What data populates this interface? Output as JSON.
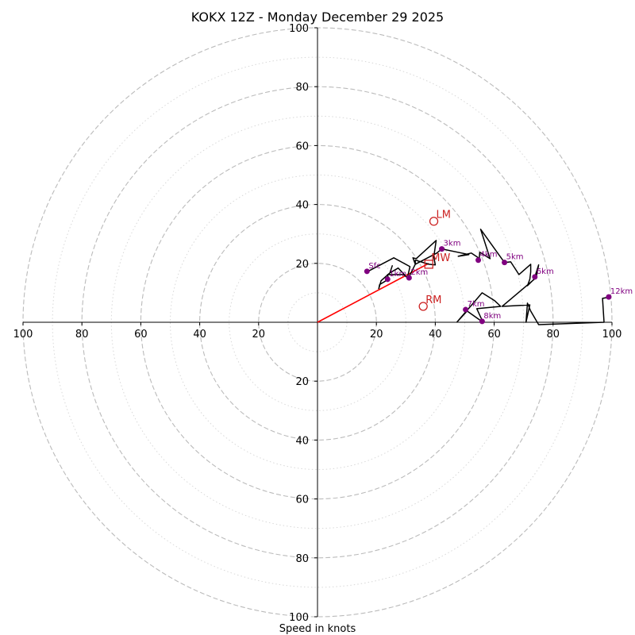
{
  "chart_data": {
    "type": "hodograph",
    "title": "KOKX 12Z - Monday December 29 2025",
    "xlabel": "Speed in knots",
    "range": [
      -100,
      100
    ],
    "rings_major": [
      20,
      40,
      60,
      80,
      100
    ],
    "rings_minor": [
      10,
      30,
      50,
      70,
      90
    ],
    "x_ticks": [
      {
        "value": -100,
        "label": "100"
      },
      {
        "value": -80,
        "label": "80"
      },
      {
        "value": -60,
        "label": "60"
      },
      {
        "value": -40,
        "label": "40"
      },
      {
        "value": -20,
        "label": "20"
      },
      {
        "value": 20,
        "label": "20"
      },
      {
        "value": 40,
        "label": "40"
      },
      {
        "value": 60,
        "label": "60"
      },
      {
        "value": 80,
        "label": "80"
      },
      {
        "value": 100,
        "label": "100"
      }
    ],
    "y_ticks": [
      {
        "value": 100,
        "label": "100"
      },
      {
        "value": 80,
        "label": "80"
      },
      {
        "value": 60,
        "label": "60"
      },
      {
        "value": 40,
        "label": "40"
      },
      {
        "value": 20,
        "label": "20"
      },
      {
        "value": -20,
        "label": "20"
      },
      {
        "value": -40,
        "label": "40"
      },
      {
        "value": -60,
        "label": "60"
      },
      {
        "value": -80,
        "label": "80"
      },
      {
        "value": -100,
        "label": "100"
      }
    ],
    "hodograph_trace": [
      [
        16.8,
        17.1
      ],
      [
        25.9,
        21.9
      ],
      [
        31.4,
        18.9
      ],
      [
        30.5,
        15.1
      ],
      [
        27.4,
        18.4
      ],
      [
        24.6,
        16.8
      ],
      [
        25.4,
        19.2
      ],
      [
        24.6,
        16.8
      ],
      [
        21.6,
        14.1
      ],
      [
        20.8,
        11.4
      ],
      [
        21.1,
        12.8
      ],
      [
        24.1,
        14.6
      ],
      [
        23.8,
        16.2
      ],
      [
        25.7,
        16.2
      ],
      [
        29.2,
        16.2
      ],
      [
        30.8,
        14.9
      ],
      [
        33.2,
        19.7
      ],
      [
        33.2,
        21.1
      ],
      [
        37.8,
        19.7
      ],
      [
        40.0,
        19.5
      ],
      [
        39.5,
        22.2
      ],
      [
        40.3,
        27.8
      ],
      [
        33.5,
        21.6
      ],
      [
        32.4,
        21.9
      ],
      [
        33.2,
        19.7
      ],
      [
        40.5,
        23.5
      ],
      [
        42.2,
        24.9
      ],
      [
        51.4,
        23.0
      ],
      [
        47.8,
        22.4
      ],
      [
        52.2,
        23.5
      ],
      [
        55.1,
        21.6
      ],
      [
        54.9,
        21.1
      ],
      [
        55.1,
        23.8
      ],
      [
        58.6,
        21.6
      ],
      [
        55.4,
        31.6
      ],
      [
        61.4,
        23.2
      ],
      [
        63.5,
        20.3
      ],
      [
        65.6,
        20.5
      ],
      [
        68.4,
        16.2
      ],
      [
        72.4,
        19.7
      ],
      [
        72.4,
        17.1
      ],
      [
        72.1,
        14.6
      ],
      [
        71.3,
        12.4
      ],
      [
        74.3,
        15.4
      ],
      [
        75.1,
        19.5
      ],
      [
        73.8,
        15.4
      ],
      [
        73.6,
        14.6
      ],
      [
        62.7,
        5.4
      ],
      [
        72.1,
        5.9
      ],
      [
        70.8,
        0.0
      ],
      [
        71.3,
        6.5
      ],
      [
        72.4,
        3.8
      ],
      [
        75.1,
        -0.8
      ],
      [
        97.3,
        0.0
      ],
      [
        96.8,
        8.1
      ],
      [
        99.5,
        8.6
      ],
      [
        99.5,
        8.6
      ]
    ],
    "trace_lower": [
      [
        47.3,
        0.0
      ],
      [
        55.9,
        10.0
      ],
      [
        60.2,
        7.3
      ],
      [
        62.2,
        5.4
      ],
      [
        54.1,
        4.6
      ],
      [
        56.2,
        0.0
      ],
      [
        56.2,
        0.0
      ],
      [
        50.8,
        3.8
      ],
      [
        47.3,
        0.0
      ]
    ],
    "height_markers": [
      {
        "label": "1km",
        "u": 23.8,
        "v": 14.6
      },
      {
        "label": "2km",
        "u": 31.1,
        "v": 15.1
      },
      {
        "label": "3km",
        "u": 42.2,
        "v": 24.9
      },
      {
        "label": "4km",
        "u": 54.6,
        "v": 21.1
      },
      {
        "label": "5km",
        "u": 63.5,
        "v": 20.3
      },
      {
        "label": "6km",
        "u": 73.8,
        "v": 15.4
      },
      {
        "label": "7km",
        "u": 50.3,
        "v": 4.3
      },
      {
        "label": "8km",
        "u": 55.9,
        "v": 0.3
      },
      {
        "label": "12km",
        "u": 98.9,
        "v": 8.6
      },
      {
        "label": "Sfc",
        "u": 16.8,
        "v": 17.3
      }
    ],
    "shear_vector": {
      "u": 37.8,
      "v": 20.0,
      "color": "#ff0000"
    },
    "motion_markers": [
      {
        "label": "LM",
        "u": 39.5,
        "v": 34.3,
        "shape": "circle"
      },
      {
        "label": "MW",
        "u": 37.8,
        "v": 19.7,
        "shape": "square"
      },
      {
        "label": "RM",
        "u": 35.9,
        "v": 5.4,
        "shape": "circle"
      }
    ],
    "colors": {
      "trace": "#000000",
      "height_marker": "#800080",
      "motion": "#cc2222",
      "ring_major": "#bbbbbb",
      "ring_minor": "#d8d8d8"
    }
  }
}
